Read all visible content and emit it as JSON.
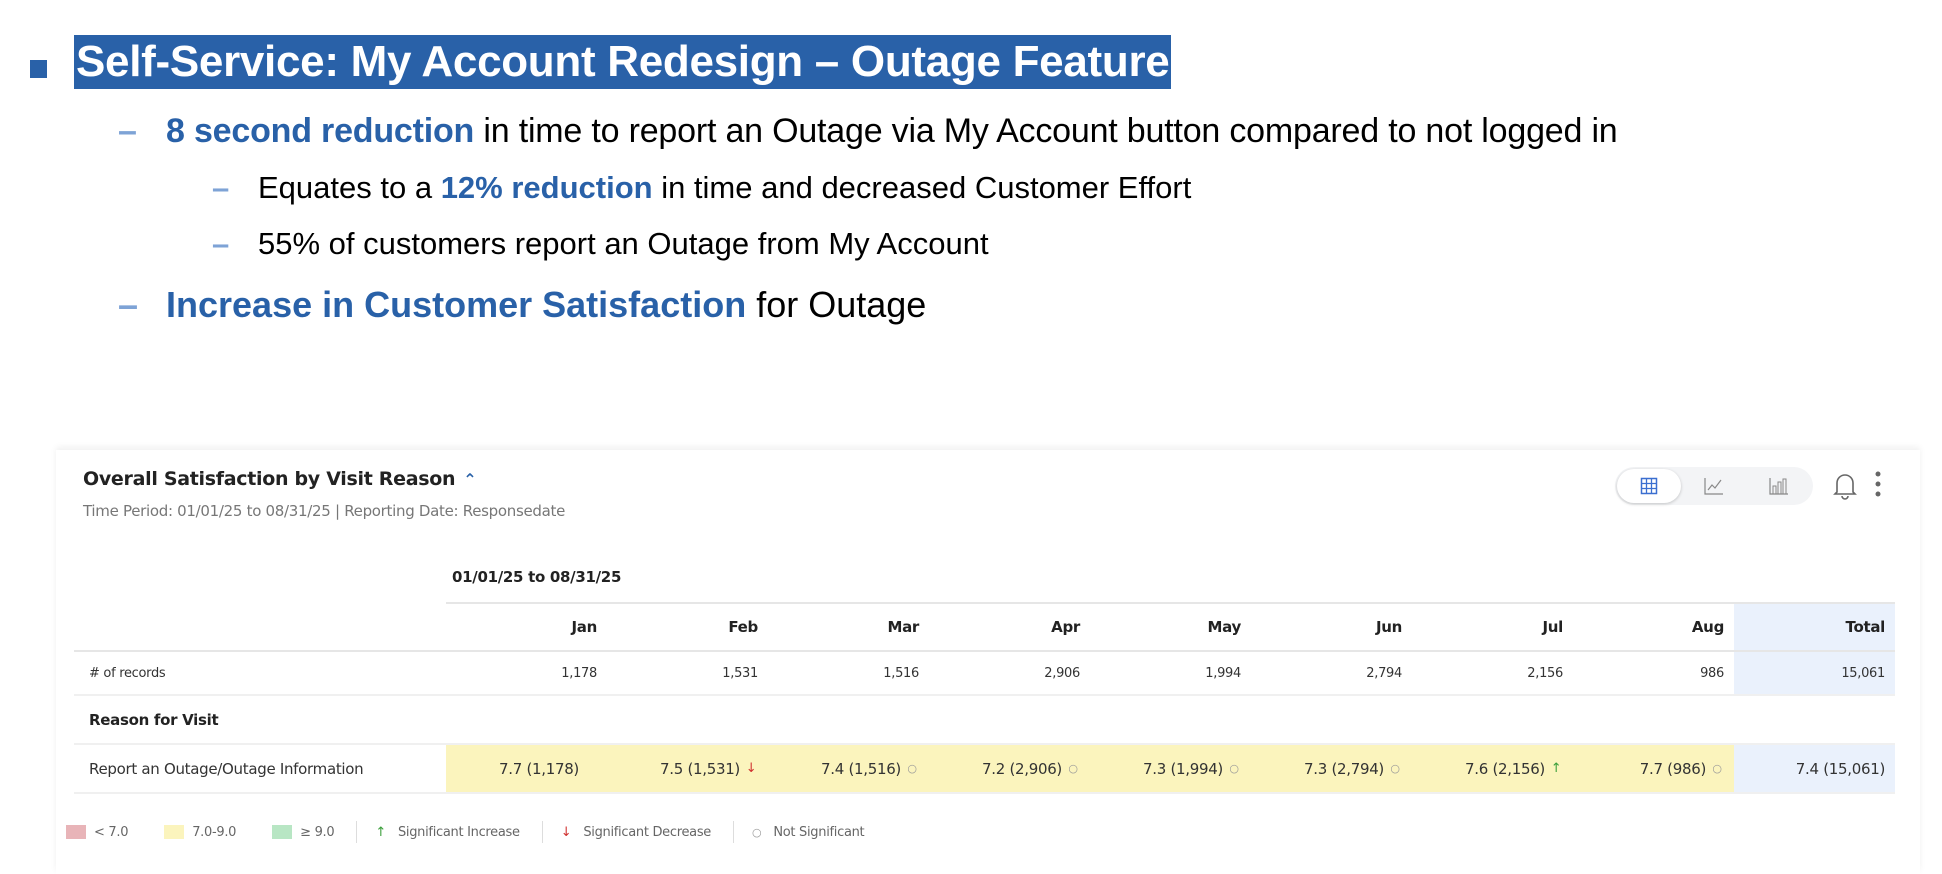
{
  "slide": {
    "title": "Self-Service: My Account Redesign – Outage Feature",
    "bullets": [
      {
        "highlight": "8 second reduction",
        "rest": " in time to report an Outage via My Account button compared to not logged in"
      },
      {
        "prefix": "Equates to a ",
        "highlight": "12% reduction",
        "rest": " in time and decreased Customer Effort"
      },
      {
        "text": "55% of customers report an Outage from My Account"
      },
      {
        "highlight": "Increase in Customer Satisfaction",
        "rest": " for Outage"
      }
    ],
    "dash": "–"
  },
  "widget": {
    "title": "Overall Satisfaction by Visit Reason",
    "caret": "^",
    "subtitle": "Time Period: 01/01/25 to 08/31/25 | Reporting Date: Responsedate",
    "view_buttons": [
      "table-icon",
      "line-chart-icon",
      "bar-chart-icon"
    ],
    "active_view": "table",
    "period_header": "01/01/25 to 08/31/25",
    "columns": [
      "Jan",
      "Feb",
      "Mar",
      "Apr",
      "May",
      "Jun",
      "Jul",
      "Aug",
      "Total"
    ],
    "records_label": "# of records",
    "records": [
      "1,178",
      "1,531",
      "1,516",
      "2,906",
      "1,994",
      "2,794",
      "2,156",
      "986",
      "15,061"
    ],
    "section_label": "Reason for Visit",
    "row_label": "Report an Outage/Outage Information",
    "row_values": [
      {
        "v": "7.7 (1,178)",
        "sig": ""
      },
      {
        "v": "7.5 (1,531)",
        "sig": "down"
      },
      {
        "v": "7.4 (1,516)",
        "sig": "ns"
      },
      {
        "v": "7.2 (2,906)",
        "sig": "ns"
      },
      {
        "v": "7.3 (1,994)",
        "sig": "ns"
      },
      {
        "v": "7.3 (2,794)",
        "sig": "ns"
      },
      {
        "v": "7.6 (2,156)",
        "sig": "up"
      },
      {
        "v": "7.7 (986)",
        "sig": "ns"
      },
      {
        "v": "7.4 (15,061)",
        "sig": ""
      }
    ],
    "legend": {
      "low": "< 7.0",
      "mid": "7.0-9.0",
      "high": "≥ 9.0",
      "inc": "Significant Increase",
      "dec": "Significant Decrease",
      "ns": "Not Significant"
    },
    "colors": {
      "low": "#e8b4b8",
      "mid": "#fbf4bd",
      "high": "#b8e6c4",
      "total": "#eaf1fc",
      "accent": "#2961a8",
      "increase": "#3a9e3a",
      "decrease": "#d0302f"
    }
  }
}
